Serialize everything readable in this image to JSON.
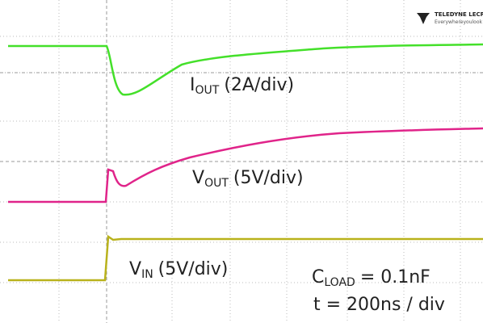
{
  "logo": {
    "brand": "TELEDYNE LECROY",
    "tagline": "Everywhereyoulook"
  },
  "labels": {
    "iout": {
      "symbol": "I",
      "subscript": "OUT",
      "scale": "(2A/div)"
    },
    "vout": {
      "symbol": "V",
      "subscript": "OUT",
      "scale": "(5V/div)"
    },
    "vin": {
      "symbol": "V",
      "subscript": "IN",
      "scale": "(5V/div)"
    },
    "cload": {
      "symbol": "C",
      "subscript": "LOAD",
      "value": "= 0.1nF"
    },
    "timebase": "t = 200ns / div"
  }
}
